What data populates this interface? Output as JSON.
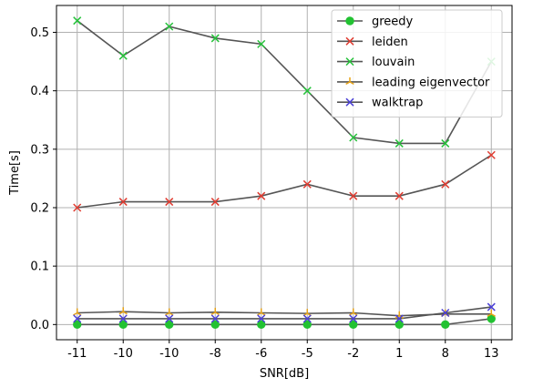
{
  "chart_data": {
    "type": "line",
    "xlabel": "SNR[dB]",
    "ylabel": "Time[s]",
    "categories": [
      "-11",
      "-10",
      "-10",
      "-8",
      "-6",
      "-5",
      "-2",
      "1",
      "8",
      "13"
    ],
    "ylim": [
      -0.026,
      0.546
    ],
    "yticks": [
      0.0,
      0.1,
      0.2,
      0.3,
      0.4,
      0.5
    ],
    "ytick_labels": [
      "0.0",
      "0.1",
      "0.2",
      "0.3",
      "0.4",
      "0.5"
    ],
    "grid": true,
    "legend_position": "top-right",
    "series": [
      {
        "name": "greedy",
        "marker": "circle",
        "color": "#22c232",
        "values": [
          0.0,
          0.0,
          0.0,
          0.0,
          0.0,
          0.0,
          0.0,
          0.0,
          0.0,
          0.01
        ]
      },
      {
        "name": "leiden",
        "marker": "x",
        "color": "#e03c31",
        "values": [
          0.2,
          0.21,
          0.21,
          0.21,
          0.22,
          0.24,
          0.22,
          0.22,
          0.24,
          0.29
        ]
      },
      {
        "name": "louvain",
        "marker": "x",
        "color": "#25c23a",
        "values": [
          0.52,
          0.46,
          0.51,
          0.49,
          0.48,
          0.4,
          0.32,
          0.31,
          0.31,
          0.45
        ]
      },
      {
        "name": "leading eigenvector",
        "marker": "tri",
        "color": "#e8a317",
        "values": [
          0.02,
          0.022,
          0.02,
          0.021,
          0.02,
          0.019,
          0.02,
          0.015,
          0.018,
          0.018
        ]
      },
      {
        "name": "walktrap",
        "marker": "x",
        "color": "#4a3fd6",
        "values": [
          0.01,
          0.01,
          0.01,
          0.01,
          0.01,
          0.01,
          0.01,
          0.01,
          0.02,
          0.03
        ]
      }
    ],
    "line_color": "#555555"
  }
}
